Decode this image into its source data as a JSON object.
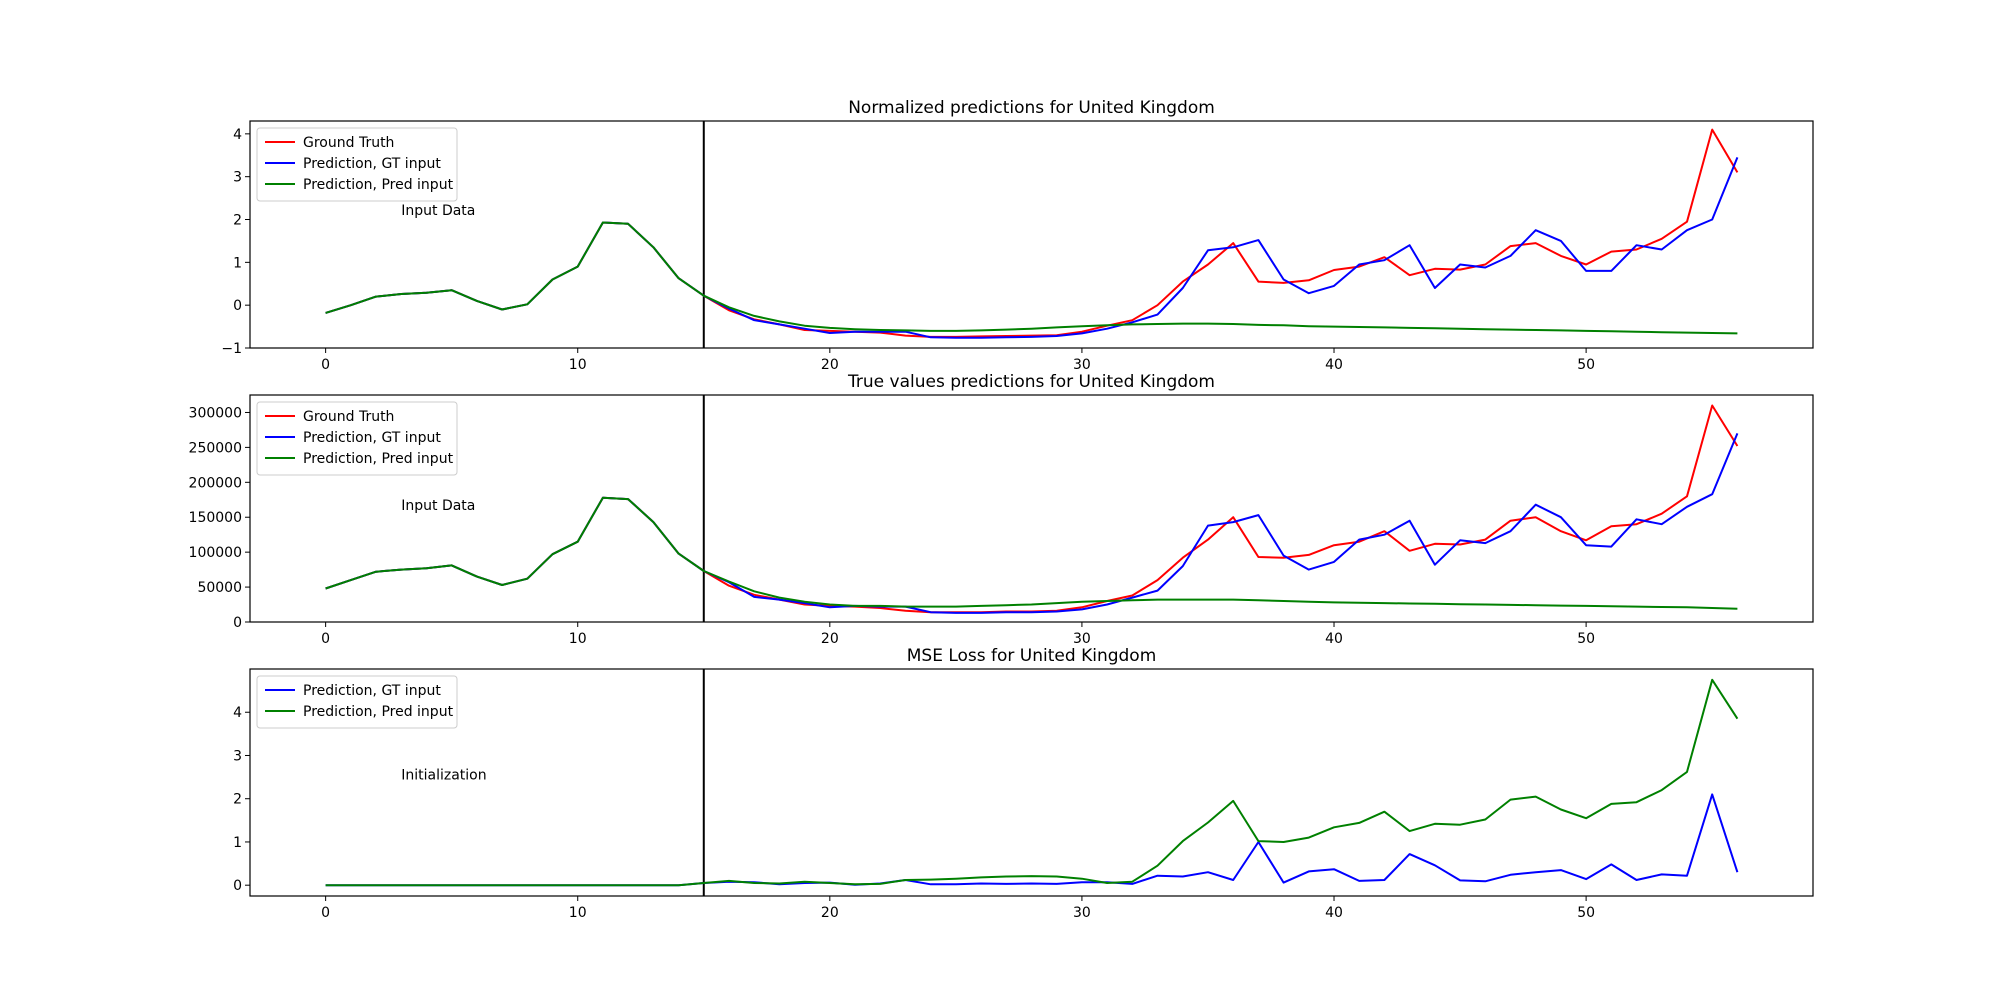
{
  "chart_data": [
    {
      "type": "line",
      "title": "Normalized predictions for United Kingdom",
      "xlim": [
        -3,
        59
      ],
      "ylim": [
        -1,
        4.3
      ],
      "xticks": [
        0,
        10,
        20,
        30,
        40,
        50
      ],
      "yticks": [
        -1,
        0,
        1,
        2,
        3,
        4
      ],
      "vline_x": 15,
      "annotation": {
        "text": "Input Data",
        "x": 3,
        "y": 2.1
      },
      "legend": "upper-left",
      "series": [
        {
          "name": "Ground Truth",
          "color": "#ff0000",
          "x_start": 0,
          "values": [
            -0.18,
            0.0,
            0.2,
            0.26,
            0.29,
            0.35,
            0.1,
            -0.1,
            0.02,
            0.6,
            0.9,
            1.93,
            1.9,
            1.35,
            0.63,
            0.22,
            -0.12,
            -0.33,
            -0.45,
            -0.58,
            -0.6,
            -0.62,
            -0.64,
            -0.71,
            -0.74,
            -0.74,
            -0.73,
            -0.72,
            -0.71,
            -0.7,
            -0.62,
            -0.48,
            -0.35,
            0.0,
            0.55,
            0.95,
            1.45,
            0.55,
            0.52,
            0.58,
            0.82,
            0.9,
            1.12,
            0.7,
            0.85,
            0.83,
            0.95,
            1.38,
            1.45,
            1.15,
            0.95,
            1.25,
            1.3,
            1.55,
            1.95,
            4.1,
            3.1
          ]
        },
        {
          "name": "Prediction, GT input",
          "color": "#0000ff",
          "x_start": 0,
          "values": [
            -0.18,
            0.0,
            0.2,
            0.26,
            0.29,
            0.35,
            0.1,
            -0.1,
            0.02,
            0.6,
            0.9,
            1.93,
            1.9,
            1.35,
            0.63,
            0.22,
            -0.08,
            -0.35,
            -0.45,
            -0.55,
            -0.65,
            -0.62,
            -0.62,
            -0.62,
            -0.75,
            -0.76,
            -0.76,
            -0.75,
            -0.74,
            -0.72,
            -0.66,
            -0.55,
            -0.4,
            -0.22,
            0.4,
            1.28,
            1.35,
            1.52,
            0.6,
            0.28,
            0.45,
            0.95,
            1.05,
            1.4,
            0.4,
            0.95,
            0.88,
            1.15,
            1.75,
            1.5,
            0.8,
            0.8,
            1.4,
            1.3,
            1.75,
            2.0,
            3.45
          ]
        },
        {
          "name": "Prediction, Pred input",
          "color": "#008000",
          "x_start": 0,
          "values": [
            -0.18,
            0.0,
            0.2,
            0.26,
            0.29,
            0.35,
            0.1,
            -0.1,
            0.02,
            0.6,
            0.9,
            1.93,
            1.9,
            1.35,
            0.63,
            0.22,
            -0.05,
            -0.25,
            -0.38,
            -0.48,
            -0.53,
            -0.56,
            -0.58,
            -0.59,
            -0.6,
            -0.6,
            -0.59,
            -0.57,
            -0.55,
            -0.52,
            -0.49,
            -0.47,
            -0.45,
            -0.44,
            -0.43,
            -0.43,
            -0.44,
            -0.46,
            -0.47,
            -0.49,
            -0.5,
            -0.51,
            -0.52,
            -0.53,
            -0.54,
            -0.55,
            -0.56,
            -0.57,
            -0.58,
            -0.59,
            -0.6,
            -0.61,
            -0.62,
            -0.63,
            -0.64,
            -0.65,
            -0.66
          ]
        }
      ]
    },
    {
      "type": "line",
      "title": "True values predictions for United Kingdom",
      "xlim": [
        -3,
        59
      ],
      "ylim": [
        0,
        325000
      ],
      "xticks": [
        0,
        10,
        20,
        30,
        40,
        50
      ],
      "yticks": [
        0,
        50000,
        100000,
        150000,
        200000,
        250000,
        300000
      ],
      "vline_x": 15,
      "annotation": {
        "text": "Input Data",
        "x": 3,
        "y": 160000
      },
      "legend": "upper-left",
      "series": [
        {
          "name": "Ground Truth",
          "color": "#ff0000",
          "x_start": 0,
          "values": [
            48000,
            60000,
            72000,
            75000,
            77000,
            81000,
            65000,
            53000,
            62000,
            97000,
            115000,
            178000,
            176000,
            143000,
            98000,
            73000,
            52000,
            39000,
            32000,
            25000,
            23000,
            22000,
            20000,
            16000,
            14000,
            14000,
            14000,
            15000,
            15000,
            16000,
            21000,
            30000,
            38000,
            60000,
            92000,
            118000,
            150000,
            93000,
            92000,
            96000,
            110000,
            115000,
            130000,
            102000,
            112000,
            111000,
            118000,
            145000,
            150000,
            130000,
            117000,
            137000,
            140000,
            155000,
            180000,
            310000,
            252000
          ]
        },
        {
          "name": "Prediction, GT input",
          "color": "#0000ff",
          "x_start": 0,
          "values": [
            48000,
            60000,
            72000,
            75000,
            77000,
            81000,
            65000,
            53000,
            62000,
            97000,
            115000,
            178000,
            176000,
            143000,
            98000,
            73000,
            57000,
            36000,
            32000,
            27000,
            21000,
            23000,
            22000,
            22000,
            14000,
            13000,
            13000,
            14000,
            14000,
            15000,
            18000,
            25000,
            35000,
            45000,
            80000,
            138000,
            143000,
            153000,
            95000,
            75000,
            86000,
            118000,
            125000,
            145000,
            82000,
            117000,
            113000,
            130000,
            168000,
            150000,
            110000,
            108000,
            147000,
            140000,
            165000,
            183000,
            270000
          ]
        },
        {
          "name": "Prediction, Pred input",
          "color": "#008000",
          "x_start": 0,
          "values": [
            48000,
            60000,
            72000,
            75000,
            77000,
            81000,
            65000,
            53000,
            62000,
            97000,
            115000,
            178000,
            176000,
            143000,
            98000,
            73000,
            58000,
            44000,
            35000,
            29000,
            25000,
            23000,
            23000,
            22000,
            22000,
            22000,
            23000,
            24000,
            25000,
            27000,
            29000,
            30000,
            31000,
            32000,
            32000,
            32000,
            32000,
            31000,
            30000,
            29000,
            28000,
            27500,
            27000,
            26500,
            26000,
            25500,
            25000,
            24500,
            24000,
            23500,
            23000,
            22500,
            22000,
            21500,
            21000,
            20000,
            19000
          ]
        }
      ]
    },
    {
      "type": "line",
      "title": "MSE Loss for United Kingdom",
      "xlim": [
        -3,
        59
      ],
      "ylim": [
        -0.25,
        5.0
      ],
      "xticks": [
        0,
        10,
        20,
        30,
        40,
        50
      ],
      "yticks": [
        0,
        1,
        2,
        3,
        4
      ],
      "vline_x": 15,
      "annotation": {
        "text": "Initialization",
        "x": 3,
        "y": 2.45
      },
      "legend": "upper-left",
      "series": [
        {
          "name": "Prediction, GT input",
          "color": "#0000ff",
          "x_start": 0,
          "values": [
            0,
            0,
            0,
            0,
            0,
            0,
            0,
            0,
            0,
            0,
            0,
            0,
            0,
            0,
            0,
            0.05,
            0.08,
            0.07,
            0.02,
            0.05,
            0.06,
            0.01,
            0.04,
            0.12,
            0.02,
            0.02,
            0.04,
            0.03,
            0.04,
            0.03,
            0.07,
            0.07,
            0.03,
            0.22,
            0.2,
            0.3,
            0.12,
            1.0,
            0.06,
            0.32,
            0.37,
            0.1,
            0.12,
            0.72,
            0.46,
            0.11,
            0.09,
            0.24,
            0.3,
            0.35,
            0.14,
            0.48,
            0.12,
            0.25,
            0.22,
            2.1,
            0.3
          ]
        },
        {
          "name": "Prediction, Pred input",
          "color": "#008000",
          "x_start": 0,
          "values": [
            0,
            0,
            0,
            0,
            0,
            0,
            0,
            0,
            0,
            0,
            0,
            0,
            0,
            0,
            0,
            0.05,
            0.1,
            0.05,
            0.04,
            0.08,
            0.05,
            0.02,
            0.03,
            0.12,
            0.13,
            0.15,
            0.18,
            0.2,
            0.21,
            0.2,
            0.15,
            0.05,
            0.08,
            0.45,
            1.02,
            1.45,
            1.95,
            1.02,
            1.0,
            1.1,
            1.34,
            1.44,
            1.7,
            1.25,
            1.42,
            1.4,
            1.52,
            1.98,
            2.05,
            1.75,
            1.55,
            1.88,
            1.92,
            2.2,
            2.62,
            4.75,
            3.85
          ]
        }
      ]
    }
  ]
}
